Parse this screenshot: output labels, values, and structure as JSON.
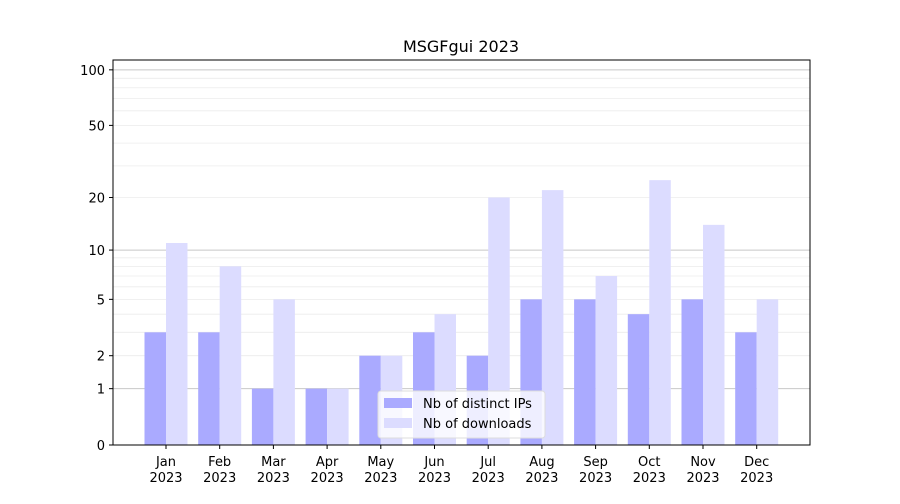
{
  "chart_data": {
    "type": "bar",
    "title": "MSGFgui 2023",
    "xlabel": "",
    "ylabel": "",
    "yscale": "log(1+y)",
    "ylim": [
      0,
      113
    ],
    "yticks": [
      0,
      1,
      2,
      5,
      10,
      20,
      50,
      100
    ],
    "categories": [
      "Jan\n2023",
      "Feb\n2023",
      "Mar\n2023",
      "Apr\n2023",
      "May\n2023",
      "Jun\n2023",
      "Jul\n2023",
      "Aug\n2023",
      "Sep\n2023",
      "Oct\n2023",
      "Nov\n2023",
      "Dec\n2023"
    ],
    "series": [
      {
        "name": "Nb of distinct IPs",
        "color": "#aaaaff",
        "values": [
          3,
          3,
          1,
          1,
          2,
          3,
          2,
          5,
          5,
          4,
          5,
          3
        ]
      },
      {
        "name": "Nb of downloads",
        "color": "#dcdcff",
        "values": [
          11,
          8,
          5,
          1,
          2,
          4,
          20,
          22,
          7,
          25,
          14,
          5
        ]
      }
    ],
    "legend_position": "bottom-center",
    "grid": true
  }
}
